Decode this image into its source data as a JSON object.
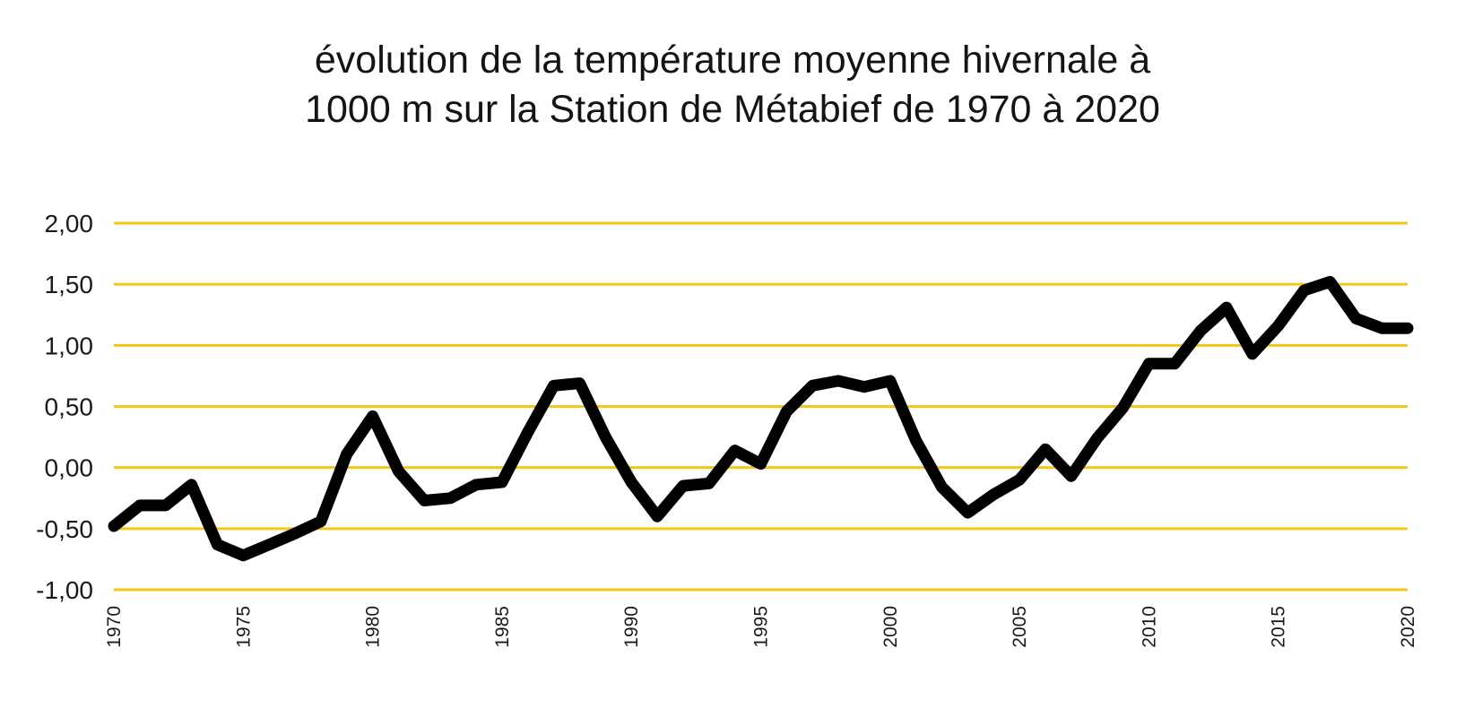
{
  "chart_data": {
    "type": "line",
    "title_lines": [
      "évolution de la température moyenne hivernale à",
      "1000 m sur la Station de Métabief de 1970 à 2020"
    ],
    "xlabel": "",
    "ylabel": "",
    "xlim": [
      1970,
      2020
    ],
    "ylim": [
      -1.0,
      2.0
    ],
    "grid": true,
    "y_ticks": [
      2.0,
      1.5,
      1.0,
      0.5,
      0.0,
      -0.5,
      -1.0
    ],
    "y_tick_labels": [
      "2,00",
      "1,50",
      "1,00",
      "0,50",
      "0,00",
      "-0,50",
      "-1,00"
    ],
    "x_ticks": [
      1970,
      1975,
      1980,
      1985,
      1990,
      1995,
      2000,
      2005,
      2010,
      2015,
      2020
    ],
    "x_tick_labels": [
      "1970",
      "1975",
      "1980",
      "1985",
      "1990",
      "1995",
      "2000",
      "2005",
      "2010",
      "2015",
      "2020"
    ],
    "colors": {
      "grid": "#f5c518",
      "line": "#000000",
      "text": "#1a1a1a"
    },
    "series": [
      {
        "x": [
          1970,
          1971,
          1972,
          1973,
          1974,
          1975,
          1976,
          1977,
          1978,
          1979,
          1980,
          1981,
          1982,
          1983,
          1984,
          1985,
          1986,
          1987,
          1988,
          1989,
          1990,
          1991,
          1992,
          1993,
          1994,
          1995,
          1996,
          1997,
          1998,
          1999,
          2000,
          2001,
          2002,
          2003,
          2004,
          2005,
          2006,
          2007,
          2008,
          2009,
          2010,
          2011,
          2012,
          2013,
          2014,
          2015,
          2016,
          2017,
          2018,
          2019,
          2020
        ],
        "values": [
          -0.48,
          -0.31,
          -0.31,
          -0.14,
          -0.63,
          -0.72,
          -0.63,
          -0.54,
          -0.44,
          0.11,
          0.42,
          -0.03,
          -0.27,
          -0.25,
          -0.14,
          -0.12,
          0.29,
          0.67,
          0.69,
          0.25,
          -0.12,
          -0.4,
          -0.15,
          -0.13,
          0.14,
          0.03,
          0.46,
          0.67,
          0.71,
          0.66,
          0.71,
          0.22,
          -0.16,
          -0.37,
          -0.22,
          -0.1,
          0.15,
          -0.07,
          0.24,
          0.49,
          0.85,
          0.85,
          1.12,
          1.31,
          0.93,
          1.16,
          1.45,
          1.52,
          1.22,
          1.14,
          1.14
        ]
      }
    ]
  }
}
